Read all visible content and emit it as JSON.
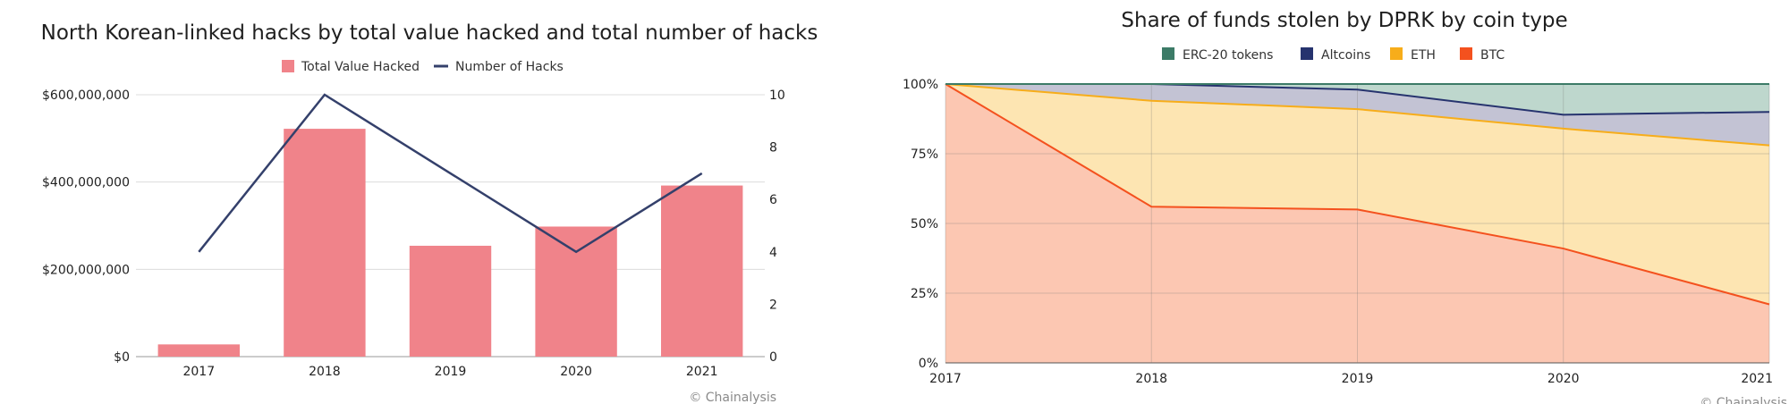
{
  "credit_text": "© Chainalysis",
  "chart_data": [
    {
      "type": "bar+line",
      "title": "North Korean-linked hacks by total value hacked and total number of hacks",
      "categories": [
        "2017",
        "2018",
        "2019",
        "2020",
        "2021"
      ],
      "series": [
        {
          "name": "Total Value Hacked",
          "kind": "bar",
          "axis": "left",
          "color": "#f0838a",
          "values": [
            28000000,
            522000000,
            254000000,
            298000000,
            392000000
          ]
        },
        {
          "name": "Number of Hacks",
          "kind": "line",
          "axis": "right",
          "color": "#34406b",
          "values": [
            4,
            10,
            7,
            4,
            7
          ]
        }
      ],
      "yleft": {
        "lim": [
          0,
          600000000
        ],
        "ticks": [
          0,
          200000000,
          400000000,
          600000000
        ],
        "tick_labels": [
          "$0",
          "$200,000,000",
          "$400,000,000",
          "$600,000,000"
        ]
      },
      "yright": {
        "lim": [
          0,
          10
        ],
        "ticks": [
          0,
          2,
          4,
          6,
          8,
          10
        ],
        "tick_labels": [
          "0",
          "2",
          "4",
          "6",
          "8",
          "10"
        ]
      },
      "grid": true,
      "legend": "top-center"
    },
    {
      "type": "area",
      "stacked": true,
      "title": "Share of funds stolen by DPRK by coin type",
      "x": [
        "2017",
        "2018",
        "2019",
        "2020",
        "2021"
      ],
      "series": [
        {
          "name": "BTC",
          "color": "#f4511e",
          "fill": "#fcc7b2",
          "values": [
            100,
            56,
            55,
            41,
            21
          ]
        },
        {
          "name": "ETH",
          "color": "#f7ad1a",
          "fill": "#fde5b2",
          "values": [
            0,
            38,
            36,
            43,
            57
          ]
        },
        {
          "name": "Altcoins",
          "color": "#26336e",
          "fill": "#c3c3d4",
          "values": [
            0,
            6,
            7,
            5,
            12
          ]
        },
        {
          "name": "ERC-20 tokens",
          "color": "#3c7b67",
          "fill": "#bed7cd",
          "values": [
            0,
            0,
            2,
            11,
            10
          ]
        }
      ],
      "legend_order": [
        "ERC-20 tokens",
        "Altcoins",
        "ETH",
        "BTC"
      ],
      "ylim": [
        0,
        100
      ],
      "yticks": [
        0,
        25,
        50,
        75,
        100
      ],
      "ytick_labels": [
        "0%",
        "25%",
        "50%",
        "75%",
        "100%"
      ],
      "grid": true,
      "legend": "top-center"
    }
  ]
}
